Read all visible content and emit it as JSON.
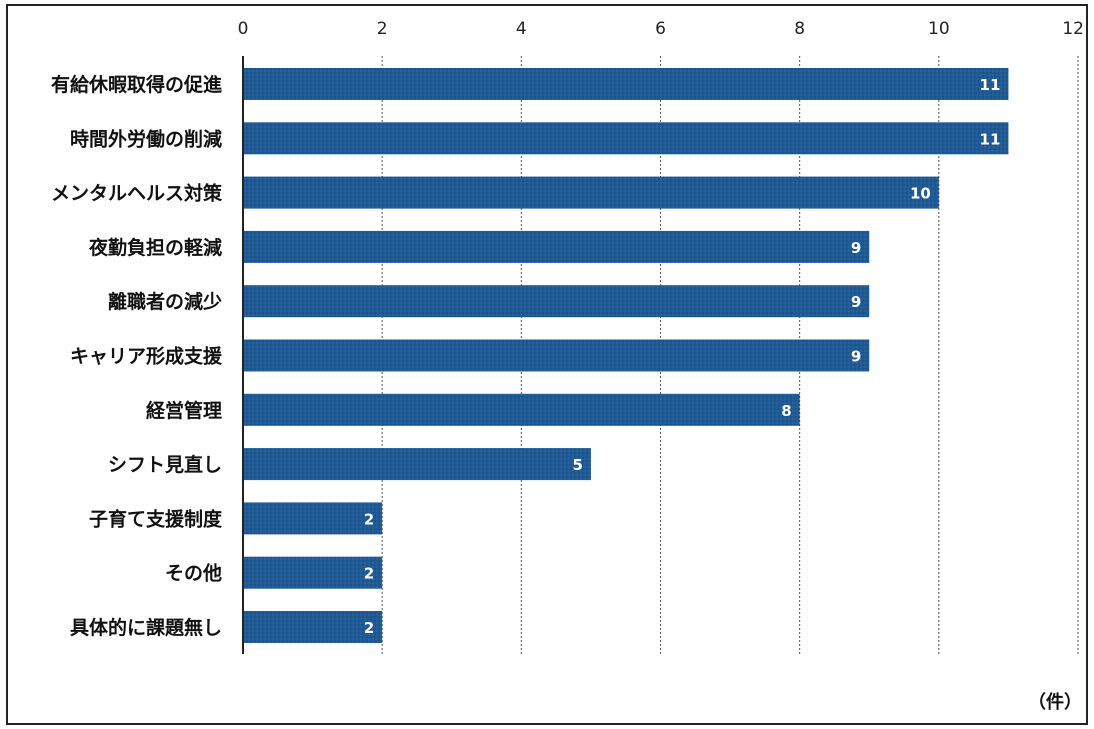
{
  "chart_data": {
    "type": "bar",
    "orientation": "horizontal",
    "categories": [
      "有給休暇取得の促進",
      "時間外労働の削減",
      "メンタルヘルス対策",
      "夜勤負担の軽減",
      "離職者の減少",
      "キャリア形成支援",
      "経営管理",
      "シフト見直し",
      "子育て支援制度",
      "その他",
      "具体的に課題無し"
    ],
    "values": [
      11,
      11,
      10,
      9,
      9,
      9,
      8,
      5,
      2,
      2,
      2
    ],
    "xlim": [
      0,
      12
    ],
    "xticks": [
      0,
      2,
      4,
      6,
      8,
      10,
      12
    ],
    "unit_label": "（件）",
    "grid": true,
    "legend": "none",
    "colors": {
      "bar": "#1f5a96",
      "grid": "#555555",
      "axis": "#222222"
    }
  }
}
